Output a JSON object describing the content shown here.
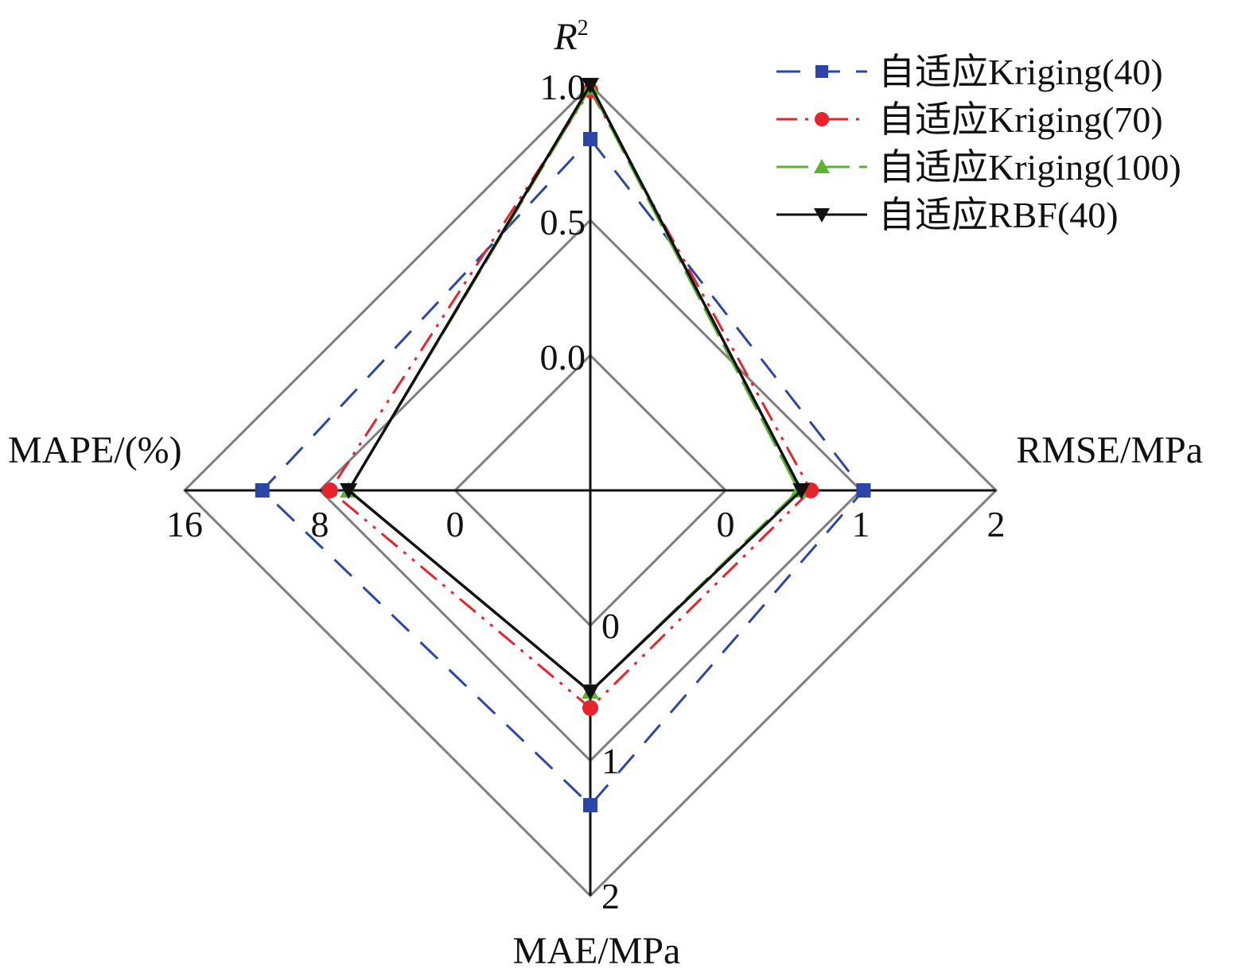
{
  "chart_data": {
    "type": "radar",
    "axes": [
      {
        "id": "r2",
        "label": "R",
        "label_sup": "2",
        "ticks": [
          "0.0",
          "0.5",
          "1.0"
        ],
        "range": [
          0.0,
          1.0
        ]
      },
      {
        "id": "rmse",
        "label": "RMSE/MPa",
        "ticks": [
          "0",
          "1",
          "2"
        ],
        "range": [
          0,
          2
        ]
      },
      {
        "id": "mae",
        "label": "MAE/MPa",
        "ticks": [
          "0",
          "1",
          "2"
        ],
        "range": [
          0,
          2
        ]
      },
      {
        "id": "mape",
        "label": "MAPE/(%)",
        "ticks": [
          "0",
          "8",
          "16"
        ],
        "range": [
          0,
          16
        ]
      }
    ],
    "series": [
      {
        "name": "自适应Kriging(40)",
        "color": "#2a47a8",
        "marker": "square",
        "dash": "dashed",
        "values": {
          "r2": 0.8,
          "rmse": 1.02,
          "mae": 1.33,
          "mape": 11.4
        }
      },
      {
        "name": "自适应Kriging(70)",
        "color": "#e8232b",
        "marker": "circle",
        "dash": "dash-dot-dot",
        "values": {
          "r2": 0.98,
          "rmse": 0.63,
          "mae": 0.61,
          "mape": 7.4
        }
      },
      {
        "name": "自适应Kriging(100)",
        "color": "#5db52d",
        "marker": "triangle-up",
        "dash": "long-dash",
        "values": {
          "r2": 0.99,
          "rmse": 0.54,
          "mae": 0.49,
          "mape": 6.3
        }
      },
      {
        "name": "自适应RBF(40)",
        "color": "#111111",
        "marker": "triangle-down",
        "dash": "solid",
        "values": {
          "r2": 1.0,
          "rmse": 0.56,
          "mae": 0.49,
          "mape": 6.3
        }
      }
    ],
    "grid": true,
    "legend_position": "top-right"
  }
}
